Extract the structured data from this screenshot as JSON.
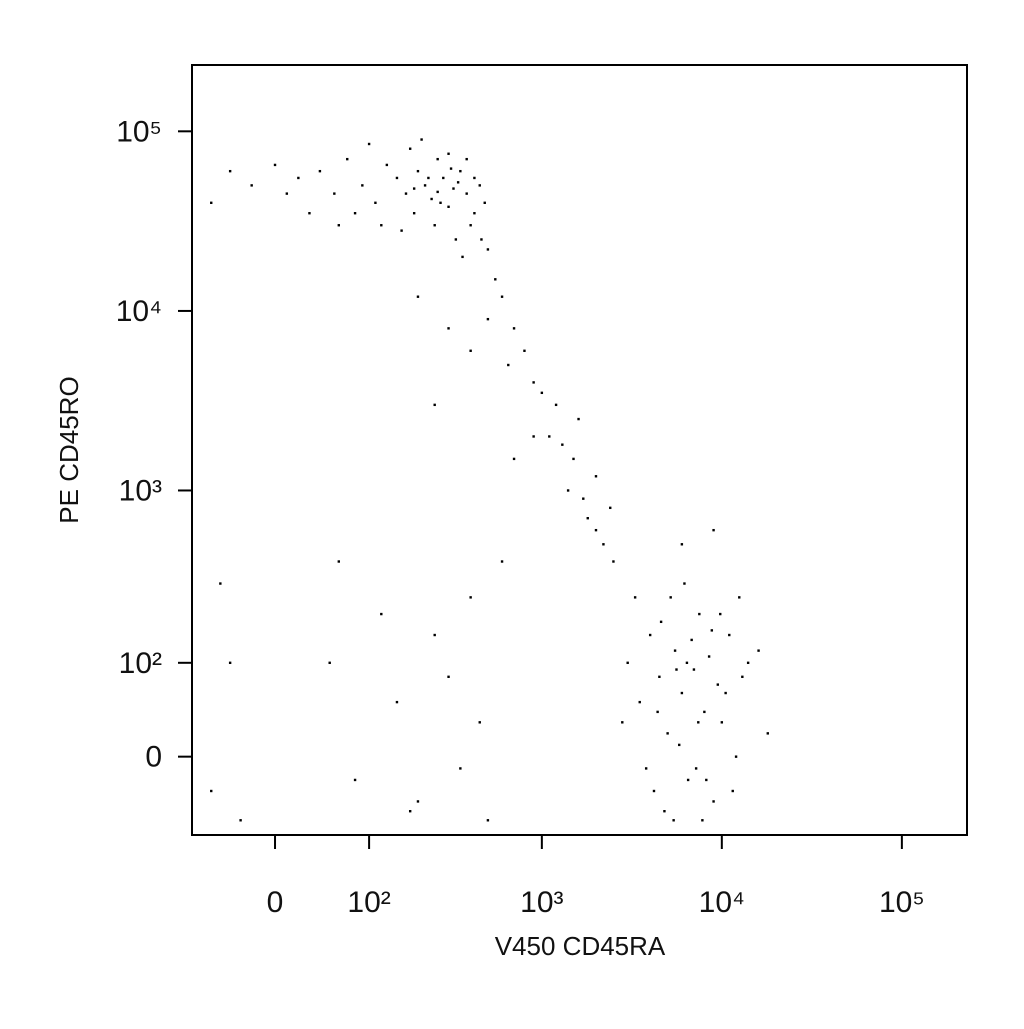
{
  "chart_data": {
    "type": "scatter",
    "x_label": "V450 CD45RA",
    "y_label": "PE CD45RO",
    "xscale": "biexponential",
    "yscale": "biexponential",
    "xlim": [
      -84,
      230000
    ],
    "ylim": [
      -78,
      234000
    ],
    "xticks": [
      0,
      {
        "value": 100,
        "label": "10²"
      },
      {
        "value": 1000,
        "label": "10³"
      },
      {
        "value": 10000,
        "label": "10⁴"
      },
      {
        "value": 100000,
        "label": "10⁵"
      }
    ],
    "yticks": [
      0,
      {
        "value": 100,
        "label": "10²"
      },
      {
        "value": 1000,
        "label": "10³"
      },
      {
        "value": 10000,
        "label": "10⁴"
      },
      {
        "value": 100000,
        "label": "10⁵"
      }
    ],
    "color": "#000000",
    "x": [
      40,
      55,
      70,
      90,
      110,
      130,
      150,
      170,
      190,
      200,
      220,
      240,
      260,
      280,
      300,
      320,
      350,
      380,
      400,
      420,
      450,
      480,
      180,
      250,
      330,
      360,
      160,
      120,
      80,
      60,
      20,
      10,
      -20,
      -40,
      -60,
      0,
      30,
      100,
      210,
      300,
      380,
      270,
      230,
      310,
      190,
      340,
      260,
      420,
      460,
      500,
      550,
      600,
      500,
      700,
      800,
      650,
      900,
      1000,
      1200,
      1100,
      1300,
      1500,
      1400,
      1700,
      1800,
      2000,
      2200,
      2500,
      1600,
      900,
      2000,
      2400,
      300,
      200,
      400,
      250,
      700,
      3000,
      3500,
      4000,
      4500,
      5000,
      5500,
      6000,
      6500,
      7000,
      7500,
      8000,
      8500,
      9000,
      9500,
      10000,
      11000,
      12000,
      13000,
      4200,
      4800,
      5200,
      6200,
      7200,
      5800,
      6800,
      4600,
      3800,
      9800,
      11500,
      14000,
      3300,
      2800,
      7800,
      5400,
      6400,
      8800,
      10500,
      4400,
      5600,
      7400,
      8200,
      12500,
      16000,
      18000,
      6000,
      9000,
      -50,
      -30,
      50,
      80,
      120,
      150,
      200,
      250,
      300,
      400,
      450,
      60,
      -60,
      180,
      350,
      600,
      500,
      -40
    ],
    "values": [
      60000,
      45000,
      70000,
      50000,
      40000,
      65000,
      55000,
      45000,
      35000,
      60000,
      50000,
      42000,
      70000,
      55000,
      38000,
      48000,
      60000,
      45000,
      30000,
      55000,
      50000,
      40000,
      80000,
      30000,
      25000,
      20000,
      28000,
      30000,
      35000,
      30000,
      55000,
      45000,
      50000,
      60000,
      40000,
      65000,
      35000,
      85000,
      90000,
      75000,
      70000,
      40000,
      55000,
      62000,
      48000,
      52000,
      46000,
      35000,
      25000,
      22000,
      15000,
      12000,
      9000,
      8000,
      6000,
      5000,
      4000,
      3500,
      3000,
      2000,
      1800,
      1500,
      1000,
      900,
      700,
      600,
      500,
      400,
      2500,
      2000,
      1200,
      800,
      8000,
      12000,
      6000,
      3000,
      1500,
      100,
      50,
      150,
      80,
      20,
      120,
      60,
      -20,
      90,
      200,
      40,
      110,
      -40,
      70,
      30,
      150,
      0,
      80,
      -30,
      -50,
      250,
      300,
      -10,
      10,
      140,
      180,
      -10,
      200,
      -30,
      100,
      250,
      30,
      -60,
      -60,
      100,
      160,
      60,
      40,
      90,
      30,
      -20,
      250,
      120,
      20,
      500,
      600,
      300,
      -60,
      100,
      -20,
      200,
      50,
      -40,
      150,
      80,
      250,
      30,
      400,
      -30,
      -50,
      -10,
      400,
      -60,
      100
    ]
  }
}
